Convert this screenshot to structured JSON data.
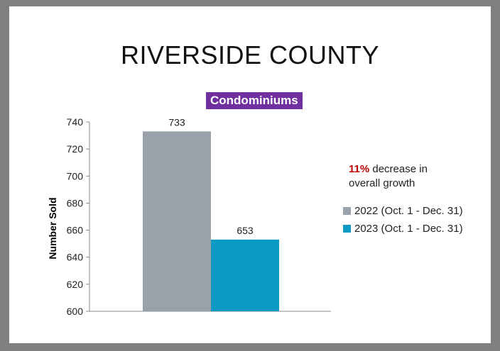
{
  "slide": {
    "title": "RIVERSIDE COUNTY"
  },
  "annotation": {
    "percent": "11%",
    "text_after_percent": " decrease in",
    "line2": "overall growth"
  },
  "colors": {
    "title_badge": "#7030a0",
    "percent_text": "#c00000",
    "series_2022": "#99a2aa",
    "series_2023": "#0c9ac4"
  },
  "chart_data": {
    "type": "bar",
    "title": "Condominiums",
    "ylabel": "Number Sold",
    "xlabel": "",
    "ylim": [
      600,
      740
    ],
    "yticks": [
      600,
      620,
      640,
      660,
      680,
      700,
      720,
      740
    ],
    "categories": [
      ""
    ],
    "series": [
      {
        "name": "2022 (Oct. 1 - Dec. 31)",
        "values": [
          733
        ],
        "color": "#99a2aa"
      },
      {
        "name": "2023 (Oct. 1 - Dec. 31)",
        "values": [
          653
        ],
        "color": "#0c9ac4"
      }
    ],
    "data_labels": true,
    "grid": false,
    "legend_position": "right"
  }
}
